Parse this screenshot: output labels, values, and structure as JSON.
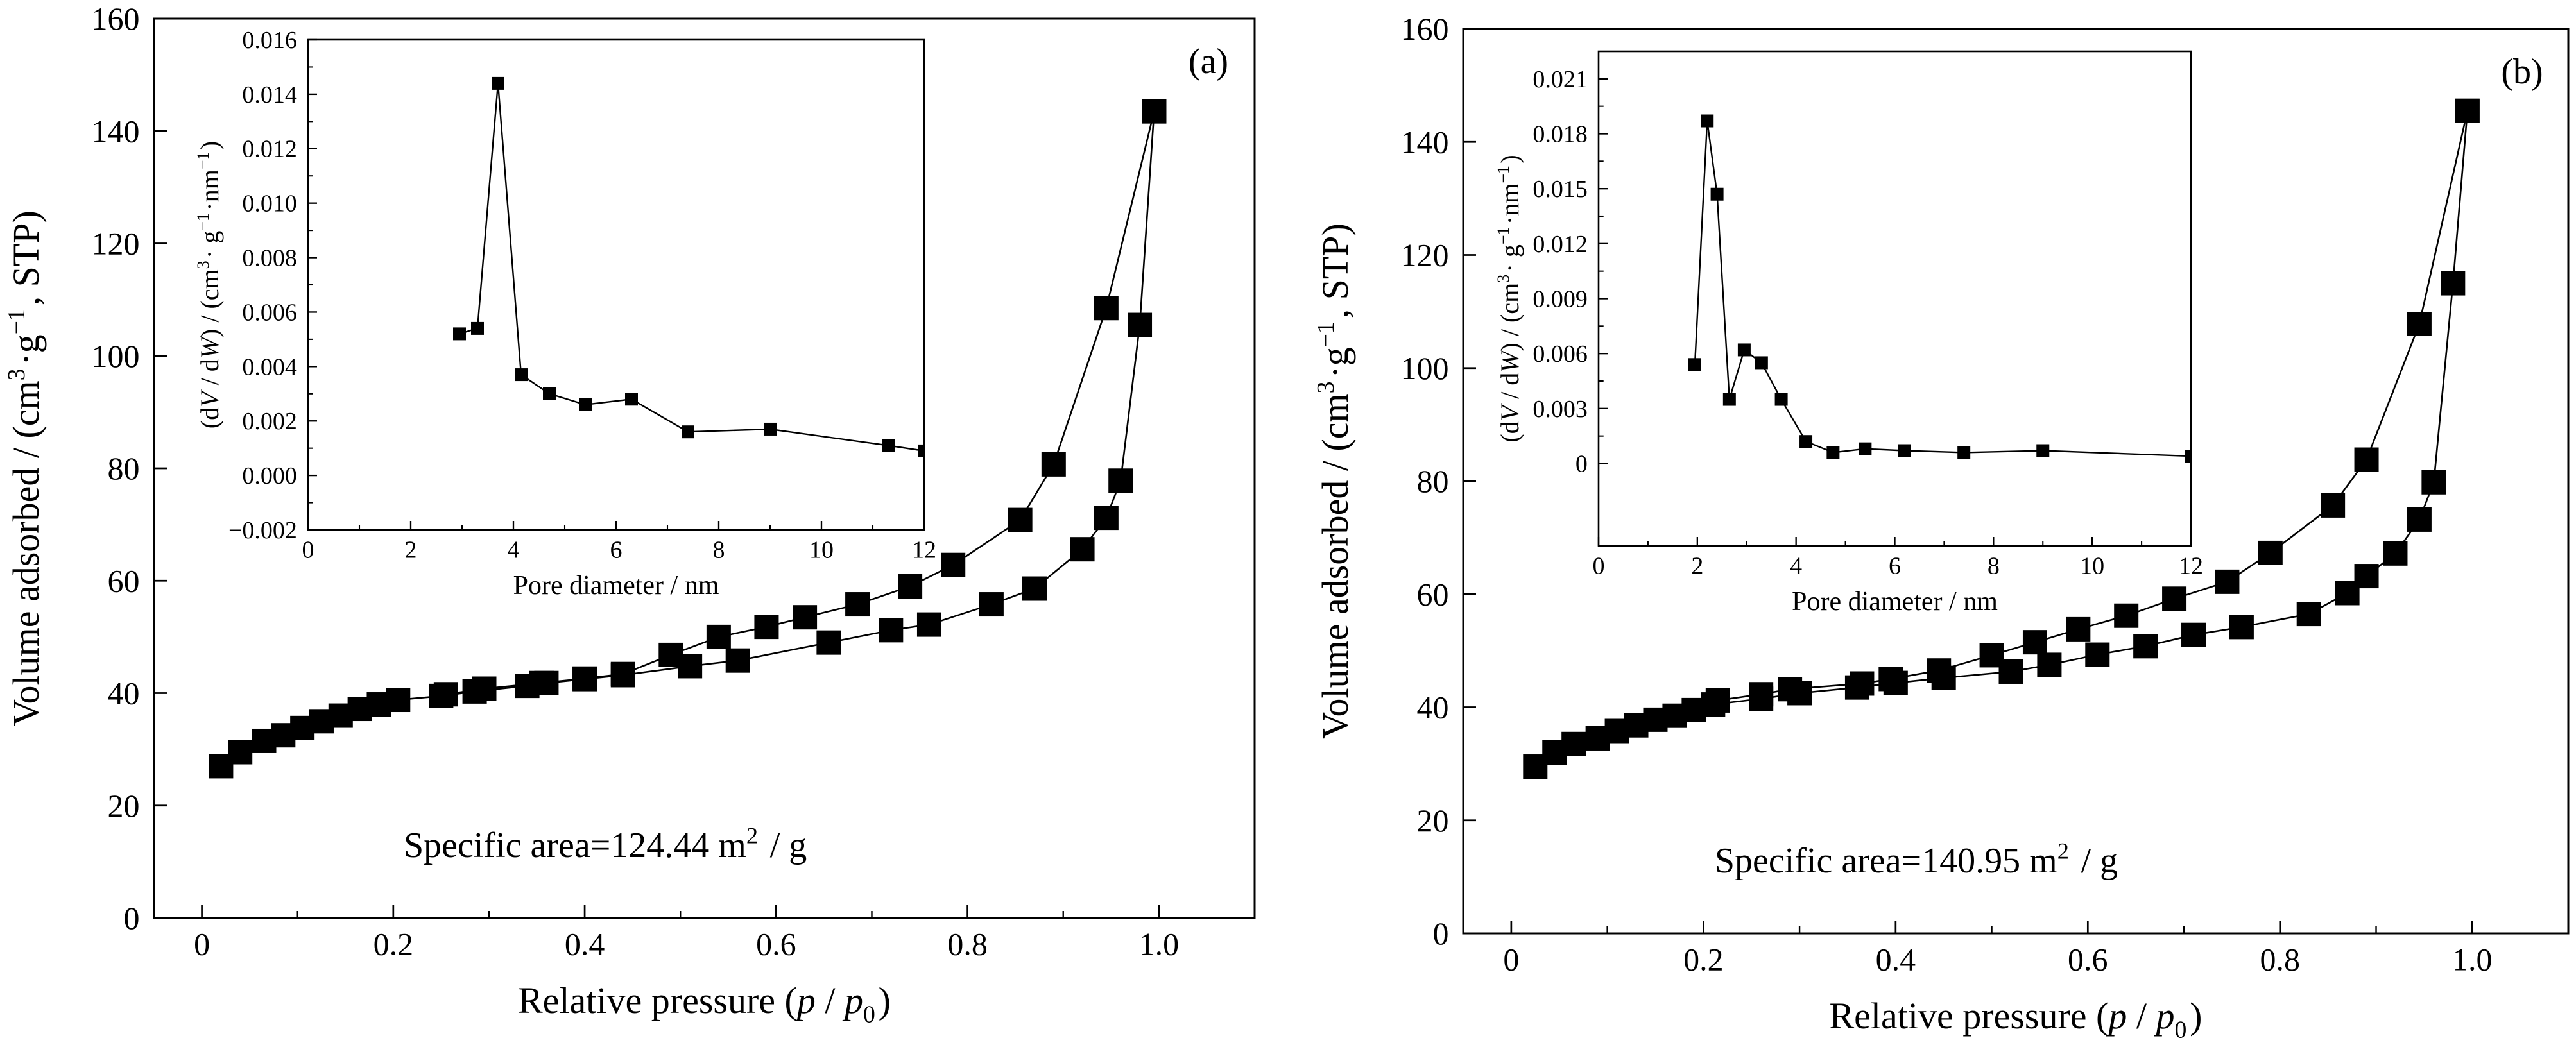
{
  "chart_data": [
    {
      "panel": "(a)",
      "type": "scatter",
      "xlabel": "Relative pressure (p / p0)",
      "ylabel": "Volume adsorbed / (cm3·g−1, STP)",
      "xlim": [
        -0.05,
        1.1
      ],
      "ylim": [
        0,
        160
      ],
      "xticks": [
        0,
        0.2,
        0.4,
        0.6,
        0.8,
        1.0
      ],
      "xtick_labels": [
        "0",
        "0.2",
        "0.4",
        "0.6",
        "0.8",
        "1.0"
      ],
      "yticks": [
        0,
        20,
        40,
        60,
        80,
        100,
        120,
        140,
        160
      ],
      "annotation": "Specific area=124.44 m2 / g",
      "grid": false,
      "series": [
        {
          "values": [
            [
              0.02,
              27
            ],
            [
              0.04,
              29.5
            ],
            [
              0.065,
              31.5
            ],
            [
              0.085,
              32.5
            ],
            [
              0.105,
              33.8
            ],
            [
              0.125,
              35
            ],
            [
              0.145,
              36
            ],
            [
              0.165,
              37.2
            ],
            [
              0.185,
              38
            ],
            [
              0.205,
              38.8
            ],
            [
              0.25,
              39.5
            ],
            [
              0.285,
              40.3
            ],
            [
              0.34,
              41.3
            ],
            [
              0.36,
              41.8
            ],
            [
              0.4,
              42.5
            ],
            [
              0.44,
              43.2
            ],
            [
              0.51,
              44.8
            ],
            [
              0.56,
              45.8
            ],
            [
              0.655,
              49
            ],
            [
              0.72,
              51.2
            ],
            [
              0.76,
              52.2
            ],
            [
              0.825,
              55.8
            ],
            [
              0.87,
              58.6
            ],
            [
              0.92,
              65.6
            ],
            [
              0.945,
              71.2
            ],
            [
              0.96,
              77.8
            ],
            [
              0.98,
              105.5
            ],
            [
              0.995,
              143.5
            ]
          ]
        },
        {
          "values": [
            [
              0.995,
              143.5
            ],
            [
              0.945,
              108.5
            ],
            [
              0.89,
              80.7
            ],
            [
              0.855,
              70.8
            ],
            [
              0.785,
              62.8
            ],
            [
              0.74,
              59
            ],
            [
              0.685,
              55.8
            ],
            [
              0.63,
              53.5
            ],
            [
              0.59,
              51.8
            ],
            [
              0.54,
              50
            ],
            [
              0.49,
              46.8
            ],
            [
              0.44,
              43.4
            ],
            [
              0.4,
              42.6
            ],
            [
              0.355,
              41.8
            ],
            [
              0.295,
              40.8
            ],
            [
              0.255,
              39.8
            ]
          ]
        }
      ],
      "inset": {
        "type": "line",
        "xlabel": "Pore diameter / nm",
        "ylabel": "(dV / dW) / (cm3· g−1·nm−1)",
        "xlim": [
          0,
          12
        ],
        "ylim": [
          -0.002,
          0.016
        ],
        "xticks": [
          0,
          2,
          4,
          6,
          8,
          10,
          12
        ],
        "yticks": [
          -0.002,
          0,
          0.002,
          0.004,
          0.006,
          0.008,
          0.01,
          0.012,
          0.014,
          0.016
        ],
        "ytick_labels": [
          "−0.002",
          "0.000",
          "0.002",
          "0.004",
          "0.006",
          "0.008",
          "0.010",
          "0.012",
          "0.014",
          "0.016"
        ],
        "values": [
          [
            2.95,
            0.0052
          ],
          [
            3.3,
            0.0054
          ],
          [
            3.7,
            0.0144
          ],
          [
            4.15,
            0.0037
          ],
          [
            4.7,
            0.003
          ],
          [
            5.4,
            0.0026
          ],
          [
            6.3,
            0.0028
          ],
          [
            7.4,
            0.0016
          ],
          [
            9.0,
            0.0017
          ],
          [
            11.3,
            0.0011
          ],
          [
            12.0,
            0.0009
          ]
        ]
      }
    },
    {
      "panel": "(b)",
      "type": "scatter",
      "xlabel": "Relative pressure (p / p0)",
      "ylabel": "Volume adsorbed / (cm3·g−1, STP)",
      "xlim": [
        -0.05,
        1.1
      ],
      "ylim": [
        0,
        160
      ],
      "xticks": [
        0,
        0.2,
        0.4,
        0.6,
        0.8,
        1.0
      ],
      "xtick_labels": [
        "0",
        "0.2",
        "0.4",
        "0.6",
        "0.8",
        "1.0"
      ],
      "yticks": [
        0,
        20,
        40,
        60,
        80,
        100,
        120,
        140,
        160
      ],
      "annotation": "Specific area=140.95 m2 / g",
      "grid": false,
      "series": [
        {
          "values": [
            [
              0.025,
              29.5
            ],
            [
              0.045,
              32
            ],
            [
              0.065,
              33.5
            ],
            [
              0.09,
              34.5
            ],
            [
              0.11,
              35.8
            ],
            [
              0.13,
              36.8
            ],
            [
              0.15,
              37.8
            ],
            [
              0.17,
              38.5
            ],
            [
              0.19,
              39.5
            ],
            [
              0.21,
              40.5
            ],
            [
              0.26,
              41.5
            ],
            [
              0.3,
              42.5
            ],
            [
              0.36,
              43.5
            ],
            [
              0.4,
              44.3
            ],
            [
              0.45,
              45.2
            ],
            [
              0.52,
              46.3
            ],
            [
              0.56,
              47.5
            ],
            [
              0.61,
              49.3
            ],
            [
              0.66,
              50.8
            ],
            [
              0.71,
              52.8
            ],
            [
              0.76,
              54.2
            ],
            [
              0.83,
              56.5
            ],
            [
              0.87,
              60.2
            ],
            [
              0.89,
              63.2
            ],
            [
              0.92,
              67.2
            ],
            [
              0.945,
              73.2
            ],
            [
              0.96,
              79.8
            ],
            [
              0.98,
              115
            ],
            [
              0.995,
              145.5
            ]
          ]
        },
        {
          "values": [
            [
              0.995,
              145.5
            ],
            [
              0.945,
              107.8
            ],
            [
              0.89,
              83.8
            ],
            [
              0.855,
              75.7
            ],
            [
              0.79,
              67.3
            ],
            [
              0.745,
              62.2
            ],
            [
              0.69,
              59.2
            ],
            [
              0.64,
              56.2
            ],
            [
              0.59,
              53.8
            ],
            [
              0.545,
              51.5
            ],
            [
              0.5,
              49.2
            ],
            [
              0.445,
              46.5
            ],
            [
              0.395,
              45
            ],
            [
              0.365,
              44.2
            ],
            [
              0.29,
              43.2
            ],
            [
              0.26,
              42.3
            ],
            [
              0.215,
              41.2
            ]
          ]
        }
      ],
      "inset": {
        "type": "line",
        "xlabel": "Pore diameter / nm",
        "ylabel": "(dV / dW) / (cm3· g−1·nm−1)",
        "xlim": [
          0,
          12
        ],
        "ylim": [
          -0.0045,
          0.0225
        ],
        "xticks": [
          0,
          2,
          4,
          6,
          8,
          10,
          12
        ],
        "yticks": [
          0,
          0.003,
          0.006,
          0.009,
          0.012,
          0.015,
          0.018,
          0.021
        ],
        "ytick_labels": [
          "0",
          "0.003",
          "0.006",
          "0.009",
          "0.012",
          "0.015",
          "0.018",
          "0.021"
        ],
        "values": [
          [
            1.95,
            0.0054
          ],
          [
            2.2,
            0.0187
          ],
          [
            2.4,
            0.0147
          ],
          [
            2.65,
            0.0035
          ],
          [
            2.95,
            0.0062
          ],
          [
            3.3,
            0.0055
          ],
          [
            3.7,
            0.0035
          ],
          [
            4.2,
            0.0012
          ],
          [
            4.75,
            0.0006
          ],
          [
            5.4,
            0.0008
          ],
          [
            6.2,
            0.0007
          ],
          [
            7.4,
            0.0006
          ],
          [
            9.0,
            0.0007
          ],
          [
            12.0,
            0.0004
          ]
        ]
      }
    }
  ]
}
